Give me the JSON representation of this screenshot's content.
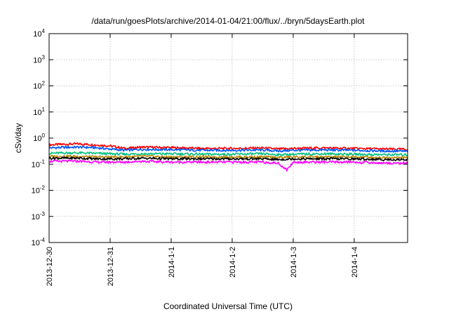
{
  "chart_data": {
    "type": "line",
    "title": "/data/run/goesPlots/archive/2014-01-04/21:00/flux/../bryn/5daysEarth.plot",
    "xlabel": "Coordinated Universal Time (UTC)",
    "ylabel": "cSv/day",
    "yscale": "log",
    "ylim": [
      0.0001,
      10000
    ],
    "xlim": [
      "2013-12-30",
      "2014-01-04 21:00"
    ],
    "grid": true,
    "legend": "none",
    "x_ticks": [
      {
        "value": 0,
        "label": "2013-12-30"
      },
      {
        "value": 1,
        "label": "2013-12-31"
      },
      {
        "value": 2,
        "label": "2014-1-1"
      },
      {
        "value": 3,
        "label": "2014-1-2"
      },
      {
        "value": 4,
        "label": "2014-1-3"
      },
      {
        "value": 5,
        "label": "2014-1-4"
      }
    ],
    "y_ticks": [
      {
        "value": 0.0001,
        "base": "10",
        "exp": "-4"
      },
      {
        "value": 0.001,
        "base": "10",
        "exp": "-3"
      },
      {
        "value": 0.01,
        "base": "10",
        "exp": "-2"
      },
      {
        "value": 0.1,
        "base": "10",
        "exp": "-1"
      },
      {
        "value": 1,
        "base": "10",
        "exp": "0"
      },
      {
        "value": 10,
        "base": "10",
        "exp": "1"
      },
      {
        "value": 100,
        "base": "10",
        "exp": "2"
      },
      {
        "value": 1000,
        "base": "10",
        "exp": "3"
      },
      {
        "value": 10000,
        "base": "10",
        "exp": "4"
      }
    ],
    "series": [
      {
        "color": "#ff0000",
        "x": [
          0,
          0.25,
          0.5,
          0.75,
          1.0,
          1.25,
          1.5,
          2.0,
          2.5,
          3.0,
          3.5,
          3.75,
          4.0,
          4.5,
          5.0,
          5.5,
          5.875
        ],
        "values": [
          0.55,
          0.58,
          0.6,
          0.55,
          0.5,
          0.4,
          0.45,
          0.43,
          0.4,
          0.4,
          0.42,
          0.38,
          0.4,
          0.42,
          0.4,
          0.38,
          0.37
        ]
      },
      {
        "color": "#0055ff",
        "x": [
          0,
          0.25,
          0.5,
          0.75,
          1.0,
          1.25,
          1.5,
          2.0,
          2.5,
          3.0,
          3.5,
          3.75,
          4.0,
          4.5,
          5.0,
          5.5,
          5.875
        ],
        "values": [
          0.42,
          0.44,
          0.45,
          0.43,
          0.38,
          0.34,
          0.37,
          0.36,
          0.34,
          0.34,
          0.35,
          0.32,
          0.34,
          0.35,
          0.34,
          0.32,
          0.31
        ]
      },
      {
        "color": "#00c080",
        "x": [
          0,
          0.25,
          0.5,
          0.75,
          1.0,
          1.25,
          1.5,
          2.0,
          2.5,
          3.0,
          3.5,
          3.75,
          4.0,
          4.5,
          5.0,
          5.5,
          5.875
        ],
        "values": [
          0.26,
          0.27,
          0.27,
          0.26,
          0.25,
          0.24,
          0.25,
          0.25,
          0.24,
          0.24,
          0.25,
          0.23,
          0.24,
          0.25,
          0.24,
          0.23,
          0.23
        ]
      },
      {
        "color": "#b8860b",
        "x": [
          0,
          0.25,
          0.5,
          0.75,
          1.0,
          1.25,
          1.5,
          2.0,
          2.5,
          3.0,
          3.5,
          3.75,
          4.0,
          4.5,
          5.0,
          5.5,
          5.875
        ],
        "values": [
          0.2,
          0.2,
          0.2,
          0.19,
          0.19,
          0.19,
          0.2,
          0.19,
          0.19,
          0.19,
          0.19,
          0.18,
          0.19,
          0.19,
          0.19,
          0.18,
          0.18
        ]
      },
      {
        "color": "#000000",
        "x": [
          0,
          0.25,
          0.5,
          0.75,
          1.0,
          1.25,
          1.5,
          2.0,
          2.5,
          3.0,
          3.5,
          3.75,
          4.0,
          4.5,
          5.0,
          5.5,
          5.875
        ],
        "values": [
          0.17,
          0.17,
          0.17,
          0.16,
          0.16,
          0.16,
          0.17,
          0.16,
          0.16,
          0.16,
          0.16,
          0.15,
          0.16,
          0.16,
          0.16,
          0.15,
          0.15
        ]
      },
      {
        "color": "#ff00ff",
        "x": [
          0,
          0.25,
          0.5,
          0.75,
          1.0,
          1.25,
          1.5,
          2.0,
          2.5,
          3.0,
          3.5,
          3.75,
          3.9,
          4.0,
          4.5,
          5.0,
          5.5,
          5.875
        ],
        "values": [
          0.13,
          0.13,
          0.13,
          0.12,
          0.12,
          0.12,
          0.13,
          0.12,
          0.12,
          0.12,
          0.12,
          0.11,
          0.06,
          0.12,
          0.12,
          0.12,
          0.11,
          0.11
        ]
      }
    ]
  }
}
